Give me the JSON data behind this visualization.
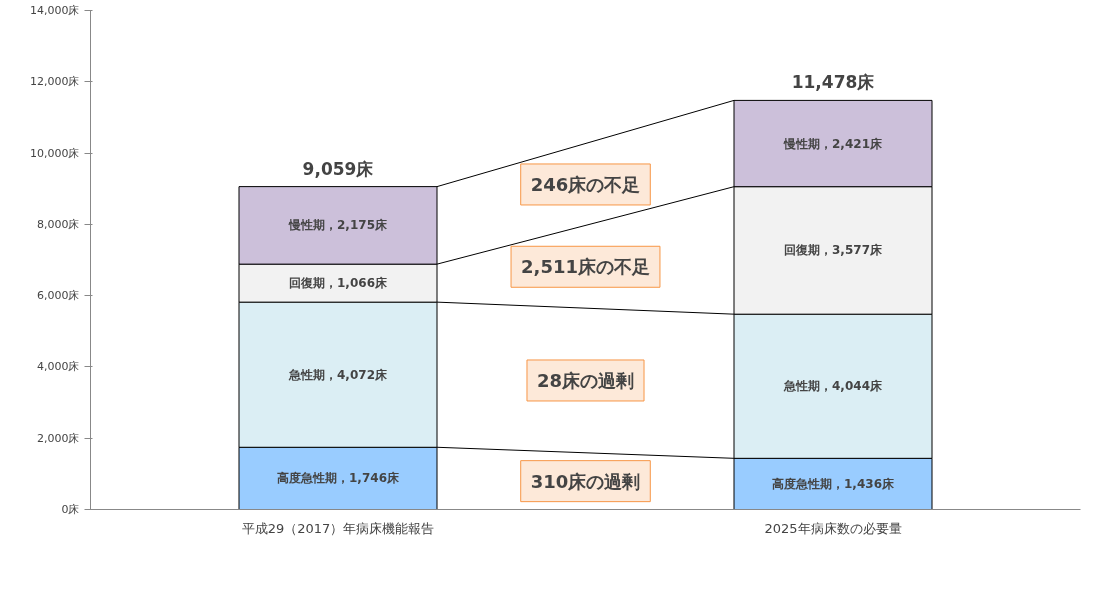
{
  "chart_data": {
    "type": "bar",
    "stacked": true,
    "categories": [
      "平成29（2017）年病床機能報告",
      "2025年病床数の必要量"
    ],
    "series": [
      {
        "color": "#99ccff",
        "values": [
          1746,
          1436
        ],
        "value_labels": [
          "高度急性期，1,746床",
          "高度急性期，1,436床"
        ]
      },
      {
        "color": "#dbeef4",
        "values": [
          4072,
          4044
        ],
        "value_labels": [
          "急性期，4,072床",
          "急性期，4,044床"
        ]
      },
      {
        "color": "#f2f2f2",
        "values": [
          1066,
          3577
        ],
        "value_labels": [
          "回復期，1,066床",
          "回復期，3,577床"
        ]
      },
      {
        "color": "#ccc0da",
        "values": [
          2175,
          2421
        ],
        "value_labels": [
          "慢性期，2,175床",
          "慢性期，2,421床"
        ]
      }
    ],
    "totals": [
      "9,059床",
      "11,478床"
    ],
    "ylim": [
      0,
      14000
    ],
    "yticks": [
      {
        "value": 0,
        "label": "0床"
      },
      {
        "value": 2000,
        "label": "2,000床"
      },
      {
        "value": 4000,
        "label": "4,000床"
      },
      {
        "value": 6000,
        "label": "6,000床"
      },
      {
        "value": 8000,
        "label": "8,000床"
      },
      {
        "value": 10000,
        "label": "10,000床"
      },
      {
        "value": 12000,
        "label": "12,000床"
      },
      {
        "value": 14000,
        "label": "14,000床"
      }
    ],
    "annotations": [
      "246床の不足",
      "2,511床の不足",
      "28床の過剰",
      "310床の過剰"
    ],
    "grid": false
  }
}
